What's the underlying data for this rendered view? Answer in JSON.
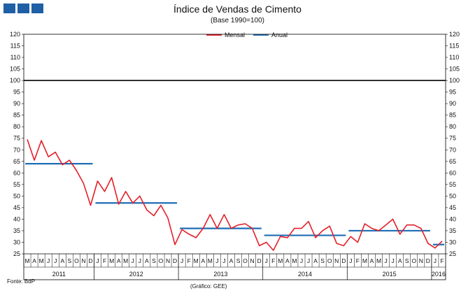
{
  "chart_data": {
    "type": "line",
    "title": "Índice de Vendas de Cimento",
    "subtitle": "(Base 1990=100)",
    "source": "Fonte: BdP",
    "credit": "(Gráfico: GEE)",
    "ylim": [
      25,
      120
    ],
    "ytick_step": 5,
    "reference_line": 100,
    "legend_position": "top-center",
    "colors": {
      "Mensal": "#e3202a",
      "Anual": "#1f6eb5",
      "reference": "#000000"
    },
    "month_labels": [
      "M",
      "A",
      "M",
      "J",
      "J",
      "A",
      "S",
      "O",
      "N",
      "D",
      "J",
      "F",
      "M",
      "A",
      "M",
      "J",
      "J",
      "A",
      "S",
      "O",
      "N",
      "D",
      "J",
      "F",
      "M",
      "A",
      "M",
      "J",
      "J",
      "A",
      "S",
      "O",
      "N",
      "D",
      "J",
      "F",
      "M",
      "A",
      "M",
      "J",
      "J",
      "A",
      "S",
      "O",
      "N",
      "D",
      "J",
      "F",
      "M",
      "A",
      "M",
      "J",
      "J",
      "A",
      "S",
      "O",
      "N",
      "D",
      "J",
      "F"
    ],
    "year_labels": [
      {
        "label": "2011",
        "start": 0,
        "end": 9
      },
      {
        "label": "2012",
        "start": 10,
        "end": 21
      },
      {
        "label": "2013",
        "start": 22,
        "end": 33
      },
      {
        "label": "2014",
        "start": 34,
        "end": 45
      },
      {
        "label": "2015",
        "start": 46,
        "end": 57
      },
      {
        "label": "2016",
        "start": 58,
        "end": 59
      }
    ],
    "series": [
      {
        "name": "Mensal",
        "values": [
          74.5,
          65.5,
          74,
          67,
          69,
          63.5,
          65.5,
          61,
          55.5,
          46,
          56.5,
          52,
          58,
          46.5,
          52,
          47,
          50,
          44,
          41.5,
          46,
          40.5,
          29,
          35.5,
          33.5,
          32,
          36,
          42,
          36,
          42,
          36,
          37.5,
          38,
          36,
          28.5,
          30,
          26.5,
          32.5,
          32,
          36,
          36,
          39,
          32,
          35,
          37,
          29.5,
          28.5,
          32.5,
          30,
          38,
          36,
          35,
          37.5,
          40,
          33.5,
          37.5,
          37.5,
          36,
          29.5,
          27.5,
          30.5
        ]
      },
      {
        "name": "Anual",
        "segments": [
          {
            "start": 0,
            "end": 9,
            "value": 64
          },
          {
            "start": 10,
            "end": 21,
            "value": 47
          },
          {
            "start": 22,
            "end": 33,
            "value": 36
          },
          {
            "start": 34,
            "end": 45,
            "value": 33
          },
          {
            "start": 46,
            "end": 57,
            "value": 35
          },
          {
            "start": 58,
            "end": 59,
            "value": 29
          }
        ]
      }
    ]
  }
}
